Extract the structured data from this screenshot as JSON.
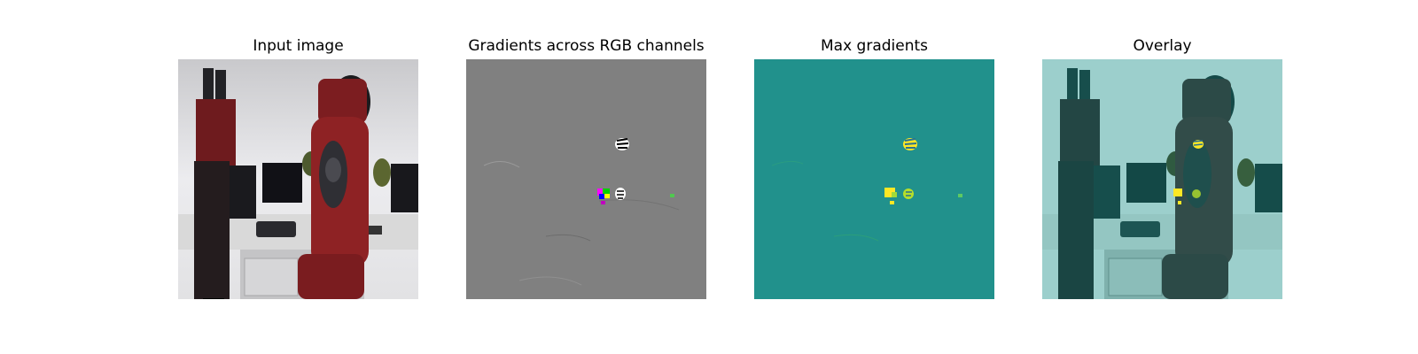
{
  "figure": {
    "panels": [
      {
        "title": "Input image"
      },
      {
        "title": "Gradients across RGB channels"
      },
      {
        "title": "Max gradients"
      },
      {
        "title": "Overlay"
      }
    ]
  },
  "colors": {
    "background": "#ffffff",
    "gradient_gray": "#808080",
    "viridis_mid": "#21918c",
    "viridis_high": "#fde725",
    "robot_red": "#8e2224",
    "wall": "#e9e9ec",
    "overlay_tint": "#2a8a86"
  }
}
